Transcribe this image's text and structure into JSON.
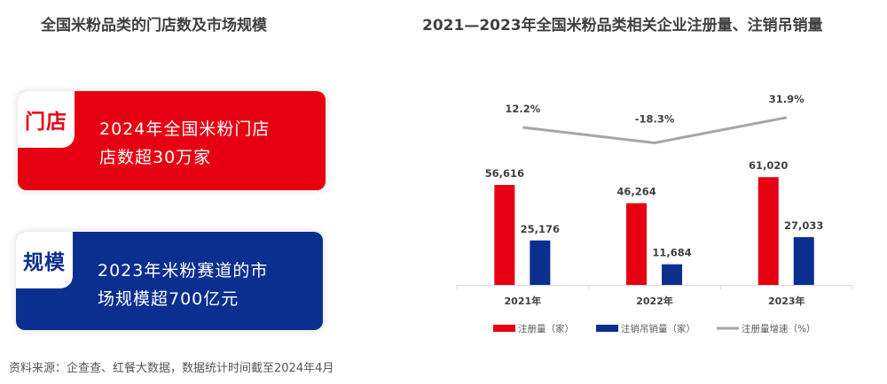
{
  "left": {
    "title": "全国米粉品类的门店数及市场规模",
    "cards": [
      {
        "tag": "门店",
        "line1": "2024年全国米粉门店",
        "line2": "店数超30万家",
        "color": "#e60012"
      },
      {
        "tag": "规模",
        "line1": "2023年米粉赛道的市",
        "line2": "场规模超700亿元",
        "color": "#0a2f8f"
      }
    ]
  },
  "chart_data": {
    "type": "bar",
    "title": "2021—2023年全国米粉品类相关企业注册量、注销吊销量",
    "categories": [
      "2021年",
      "2022年",
      "2023年"
    ],
    "series": [
      {
        "name": "注册量（家）",
        "type": "bar",
        "color": "#e60012",
        "values": [
          56616,
          46264,
          61020
        ],
        "labels": [
          "56,616",
          "46,264",
          "61,020"
        ]
      },
      {
        "name": "注销吊销量（家）",
        "type": "bar",
        "color": "#0a2f8f",
        "values": [
          25176,
          11684,
          27033
        ],
        "labels": [
          "25,176",
          "11,684",
          "27,033"
        ]
      },
      {
        "name": "注册量增速（%）",
        "type": "line",
        "color": "#a6a6a6",
        "values": [
          12.2,
          -18.3,
          31.9
        ],
        "labels": [
          "12.2%",
          "-18.3%",
          "31.9%"
        ]
      }
    ],
    "legend": "bottom",
    "grid": false
  },
  "source": "资料来源：企查查、红餐大数据，数据统计时间截至2024年4月"
}
